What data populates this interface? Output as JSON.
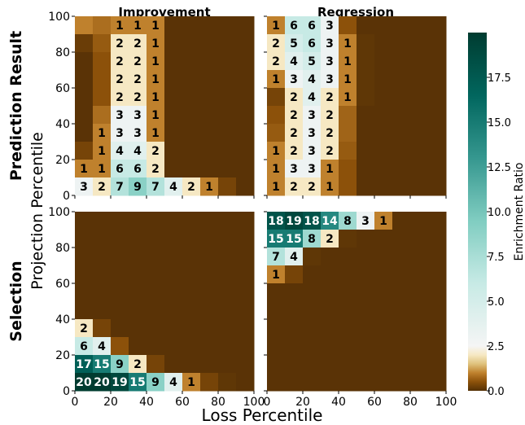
{
  "figure": {
    "col_titles": [
      "Improvement",
      "Regression"
    ],
    "row_titles": [
      "Prediction Result",
      "Selection"
    ],
    "xlabel": "Loss Percentile",
    "ylabel": "Projection Percentile",
    "colorbar_label": "Enrichment Ratio"
  },
  "chart_data": {
    "type": "heatmap",
    "x_ticks": [
      "0",
      "20",
      "40",
      "60",
      "80",
      "100"
    ],
    "y_ticks": [
      "0",
      "20",
      "40",
      "60",
      "80",
      "100"
    ],
    "colorbar": {
      "range": [
        0,
        20
      ],
      "ticks": [
        "0.0",
        "2.5",
        "5.0",
        "7.5",
        "10.0",
        "12.5",
        "15.0",
        "17.5"
      ],
      "colors": [
        "#543005",
        "#8c510a",
        "#bf812d",
        "#dfc27d",
        "#f6e8c3",
        "#f5f5f5",
        "#c7eae5",
        "#80cdc1",
        "#35978f",
        "#01665e",
        "#003c30"
      ]
    },
    "panels": [
      {
        "row": "Prediction Result",
        "col": "Improvement",
        "values": [
          [
            1,
            0.8,
            1,
            1,
            1,
            0.05,
            0.05,
            0.05,
            0.05,
            0.05
          ],
          [
            0.2,
            0.6,
            2,
            2,
            1,
            0.05,
            0.05,
            0.05,
            0.05,
            0.05
          ],
          [
            0.05,
            0.5,
            2,
            2,
            1,
            0.05,
            0.05,
            0.05,
            0.05,
            0.05
          ],
          [
            0.05,
            0.5,
            2,
            2,
            1,
            0.05,
            0.05,
            0.05,
            0.05,
            0.05
          ],
          [
            0.05,
            0.5,
            2,
            2,
            1,
            0.05,
            0.05,
            0.05,
            0.05,
            0.05
          ],
          [
            0.05,
            0.8,
            3,
            3,
            1,
            0.05,
            0.05,
            0.05,
            0.05,
            0.05
          ],
          [
            0.05,
            1,
            3,
            3,
            1,
            0.05,
            0.05,
            0.05,
            0.05,
            0.05
          ],
          [
            0.3,
            1,
            4,
            4,
            2,
            0.05,
            0.05,
            0.05,
            0.05,
            0.05
          ],
          [
            1,
            1,
            6,
            6,
            2,
            0.05,
            0.05,
            0.05,
            0.05,
            0.05
          ],
          [
            3,
            2,
            7,
            9,
            7,
            4,
            2,
            1,
            0.3,
            0.05
          ]
        ],
        "labels": [
          [
            "",
            "",
            "1",
            "1",
            "1",
            "",
            "",
            "",
            "",
            ""
          ],
          [
            "",
            "",
            "2",
            "2",
            "1",
            "",
            "",
            "",
            "",
            ""
          ],
          [
            "",
            "",
            "2",
            "2",
            "1",
            "",
            "",
            "",
            "",
            ""
          ],
          [
            "",
            "",
            "2",
            "2",
            "1",
            "",
            "",
            "",
            "",
            ""
          ],
          [
            "",
            "",
            "2",
            "2",
            "1",
            "",
            "",
            "",
            "",
            ""
          ],
          [
            "",
            "",
            "3",
            "3",
            "1",
            "",
            "",
            "",
            "",
            ""
          ],
          [
            "",
            "1",
            "3",
            "3",
            "1",
            "",
            "",
            "",
            "",
            ""
          ],
          [
            "",
            "1",
            "4",
            "4",
            "2",
            "",
            "",
            "",
            "",
            ""
          ],
          [
            "1",
            "1",
            "6",
            "6",
            "2",
            "",
            "",
            "",
            "",
            ""
          ],
          [
            "3",
            "2",
            "7",
            "9",
            "7",
            "4",
            "2",
            "1",
            "",
            ""
          ]
        ]
      },
      {
        "row": "Prediction Result",
        "col": "Regression",
        "values": [
          [
            1,
            6,
            6,
            3,
            0.5,
            0.05,
            0.05,
            0.05,
            0.05,
            0.05
          ],
          [
            2,
            5,
            6,
            3,
            1,
            0.1,
            0.05,
            0.05,
            0.05,
            0.05
          ],
          [
            2,
            4,
            5,
            3,
            1,
            0.1,
            0.05,
            0.05,
            0.05,
            0.05
          ],
          [
            1,
            3,
            4,
            3,
            1,
            0.1,
            0.05,
            0.05,
            0.05,
            0.05
          ],
          [
            0.3,
            2,
            4,
            2,
            1,
            0.1,
            0.05,
            0.05,
            0.05,
            0.05
          ],
          [
            0.5,
            2,
            3,
            2,
            0.7,
            0.05,
            0.05,
            0.05,
            0.05,
            0.05
          ],
          [
            0.6,
            2,
            3,
            2,
            0.7,
            0.05,
            0.05,
            0.05,
            0.05,
            0.05
          ],
          [
            1,
            2,
            3,
            2,
            0.6,
            0.05,
            0.05,
            0.05,
            0.05,
            0.05
          ],
          [
            1,
            3,
            3,
            1,
            0.5,
            0.05,
            0.05,
            0.05,
            0.05,
            0.05
          ],
          [
            1,
            2,
            2,
            1,
            0.5,
            0.05,
            0.05,
            0.05,
            0.05,
            0.05
          ]
        ],
        "labels": [
          [
            "1",
            "6",
            "6",
            "3",
            "",
            "",
            "",
            "",
            "",
            ""
          ],
          [
            "2",
            "5",
            "6",
            "3",
            "1",
            "",
            "",
            "",
            "",
            ""
          ],
          [
            "2",
            "4",
            "5",
            "3",
            "1",
            "",
            "",
            "",
            "",
            ""
          ],
          [
            "1",
            "3",
            "4",
            "3",
            "1",
            "",
            "",
            "",
            "",
            ""
          ],
          [
            "",
            "2",
            "4",
            "2",
            "1",
            "",
            "",
            "",
            "",
            ""
          ],
          [
            "",
            "2",
            "3",
            "2",
            "",
            "",
            "",
            "",
            "",
            ""
          ],
          [
            "",
            "2",
            "3",
            "2",
            "",
            "",
            "",
            "",
            "",
            ""
          ],
          [
            "1",
            "2",
            "3",
            "2",
            "",
            "",
            "",
            "",
            "",
            ""
          ],
          [
            "1",
            "3",
            "3",
            "1",
            "",
            "",
            "",
            "",
            "",
            ""
          ],
          [
            "1",
            "2",
            "2",
            "1",
            "",
            "",
            "",
            "",
            "",
            ""
          ]
        ]
      },
      {
        "row": "Selection",
        "col": "Improvement",
        "values": [
          [
            0.05,
            0.05,
            0.05,
            0.05,
            0.05,
            0.05,
            0.05,
            0.05,
            0.05,
            0.05
          ],
          [
            0.05,
            0.05,
            0.05,
            0.05,
            0.05,
            0.05,
            0.05,
            0.05,
            0.05,
            0.05
          ],
          [
            0.05,
            0.05,
            0.05,
            0.05,
            0.05,
            0.05,
            0.05,
            0.05,
            0.05,
            0.05
          ],
          [
            0.05,
            0.05,
            0.05,
            0.05,
            0.05,
            0.05,
            0.05,
            0.05,
            0.05,
            0.05
          ],
          [
            0.05,
            0.05,
            0.05,
            0.05,
            0.05,
            0.05,
            0.05,
            0.05,
            0.05,
            0.05
          ],
          [
            0.05,
            0.05,
            0.05,
            0.05,
            0.05,
            0.05,
            0.05,
            0.05,
            0.05,
            0.05
          ],
          [
            2,
            0.3,
            0.05,
            0.05,
            0.05,
            0.05,
            0.05,
            0.05,
            0.05,
            0.05
          ],
          [
            6,
            4,
            0.5,
            0.05,
            0.05,
            0.05,
            0.05,
            0.05,
            0.05,
            0.05
          ],
          [
            17,
            15,
            9,
            2,
            0.3,
            0.05,
            0.05,
            0.05,
            0.05,
            0.05
          ],
          [
            20,
            20,
            19,
            15,
            9,
            4,
            1,
            0.3,
            0.1,
            0.05
          ]
        ],
        "labels": [
          [
            "",
            "",
            "",
            "",
            "",
            "",
            "",
            "",
            "",
            ""
          ],
          [
            "",
            "",
            "",
            "",
            "",
            "",
            "",
            "",
            "",
            ""
          ],
          [
            "",
            "",
            "",
            "",
            "",
            "",
            "",
            "",
            "",
            ""
          ],
          [
            "",
            "",
            "",
            "",
            "",
            "",
            "",
            "",
            "",
            ""
          ],
          [
            "",
            "",
            "",
            "",
            "",
            "",
            "",
            "",
            "",
            ""
          ],
          [
            "",
            "",
            "",
            "",
            "",
            "",
            "",
            "",
            "",
            ""
          ],
          [
            "2",
            "",
            "",
            "",
            "",
            "",
            "",
            "",
            "",
            ""
          ],
          [
            "6",
            "4",
            "",
            "",
            "",
            "",
            "",
            "",
            "",
            ""
          ],
          [
            "17",
            "15",
            "9",
            "2",
            "",
            "",
            "",
            "",
            "",
            ""
          ],
          [
            "20",
            "20",
            "19",
            "15",
            "9",
            "4",
            "1",
            "",
            "",
            ""
          ]
        ]
      },
      {
        "row": "Selection",
        "col": "Regression",
        "values": [
          [
            18,
            19,
            18,
            14,
            8,
            3,
            1,
            0.05,
            0.05,
            0.05
          ],
          [
            15,
            15,
            8,
            2,
            0.1,
            0.05,
            0.05,
            0.05,
            0.05,
            0.05
          ],
          [
            7,
            4,
            0.1,
            0.05,
            0.05,
            0.05,
            0.05,
            0.05,
            0.05,
            0.05
          ],
          [
            1,
            0.3,
            0.05,
            0.05,
            0.05,
            0.05,
            0.05,
            0.05,
            0.05,
            0.05
          ],
          [
            0.05,
            0.05,
            0.05,
            0.05,
            0.05,
            0.05,
            0.05,
            0.05,
            0.05,
            0.05
          ],
          [
            0.05,
            0.05,
            0.05,
            0.05,
            0.05,
            0.05,
            0.05,
            0.05,
            0.05,
            0.05
          ],
          [
            0.05,
            0.05,
            0.05,
            0.05,
            0.05,
            0.05,
            0.05,
            0.05,
            0.05,
            0.05
          ],
          [
            0.05,
            0.05,
            0.05,
            0.05,
            0.05,
            0.05,
            0.05,
            0.05,
            0.05,
            0.05
          ],
          [
            0.05,
            0.05,
            0.05,
            0.05,
            0.05,
            0.05,
            0.05,
            0.05,
            0.05,
            0.05
          ],
          [
            0.05,
            0.05,
            0.05,
            0.05,
            0.05,
            0.05,
            0.05,
            0.05,
            0.05,
            0.05
          ]
        ],
        "labels": [
          [
            "18",
            "19",
            "18",
            "14",
            "8",
            "3",
            "1",
            "",
            "",
            ""
          ],
          [
            "15",
            "15",
            "8",
            "2",
            "",
            "",
            "",
            "",
            "",
            ""
          ],
          [
            "7",
            "4",
            "",
            "",
            "",
            "",
            "",
            "",
            "",
            ""
          ],
          [
            "1",
            "",
            "",
            "",
            "",
            "",
            "",
            "",
            "",
            ""
          ],
          [
            "",
            "",
            "",
            "",
            "",
            "",
            "",
            "",
            "",
            ""
          ],
          [
            "",
            "",
            "",
            "",
            "",
            "",
            "",
            "",
            "",
            ""
          ],
          [
            "",
            "",
            "",
            "",
            "",
            "",
            "",
            "",
            "",
            ""
          ],
          [
            "",
            "",
            "",
            "",
            "",
            "",
            "",
            "",
            "",
            ""
          ],
          [
            "",
            "",
            "",
            "",
            "",
            "",
            "",
            "",
            "",
            ""
          ],
          [
            "",
            "",
            "",
            "",
            "",
            "",
            "",
            "",
            "",
            ""
          ]
        ]
      }
    ]
  }
}
